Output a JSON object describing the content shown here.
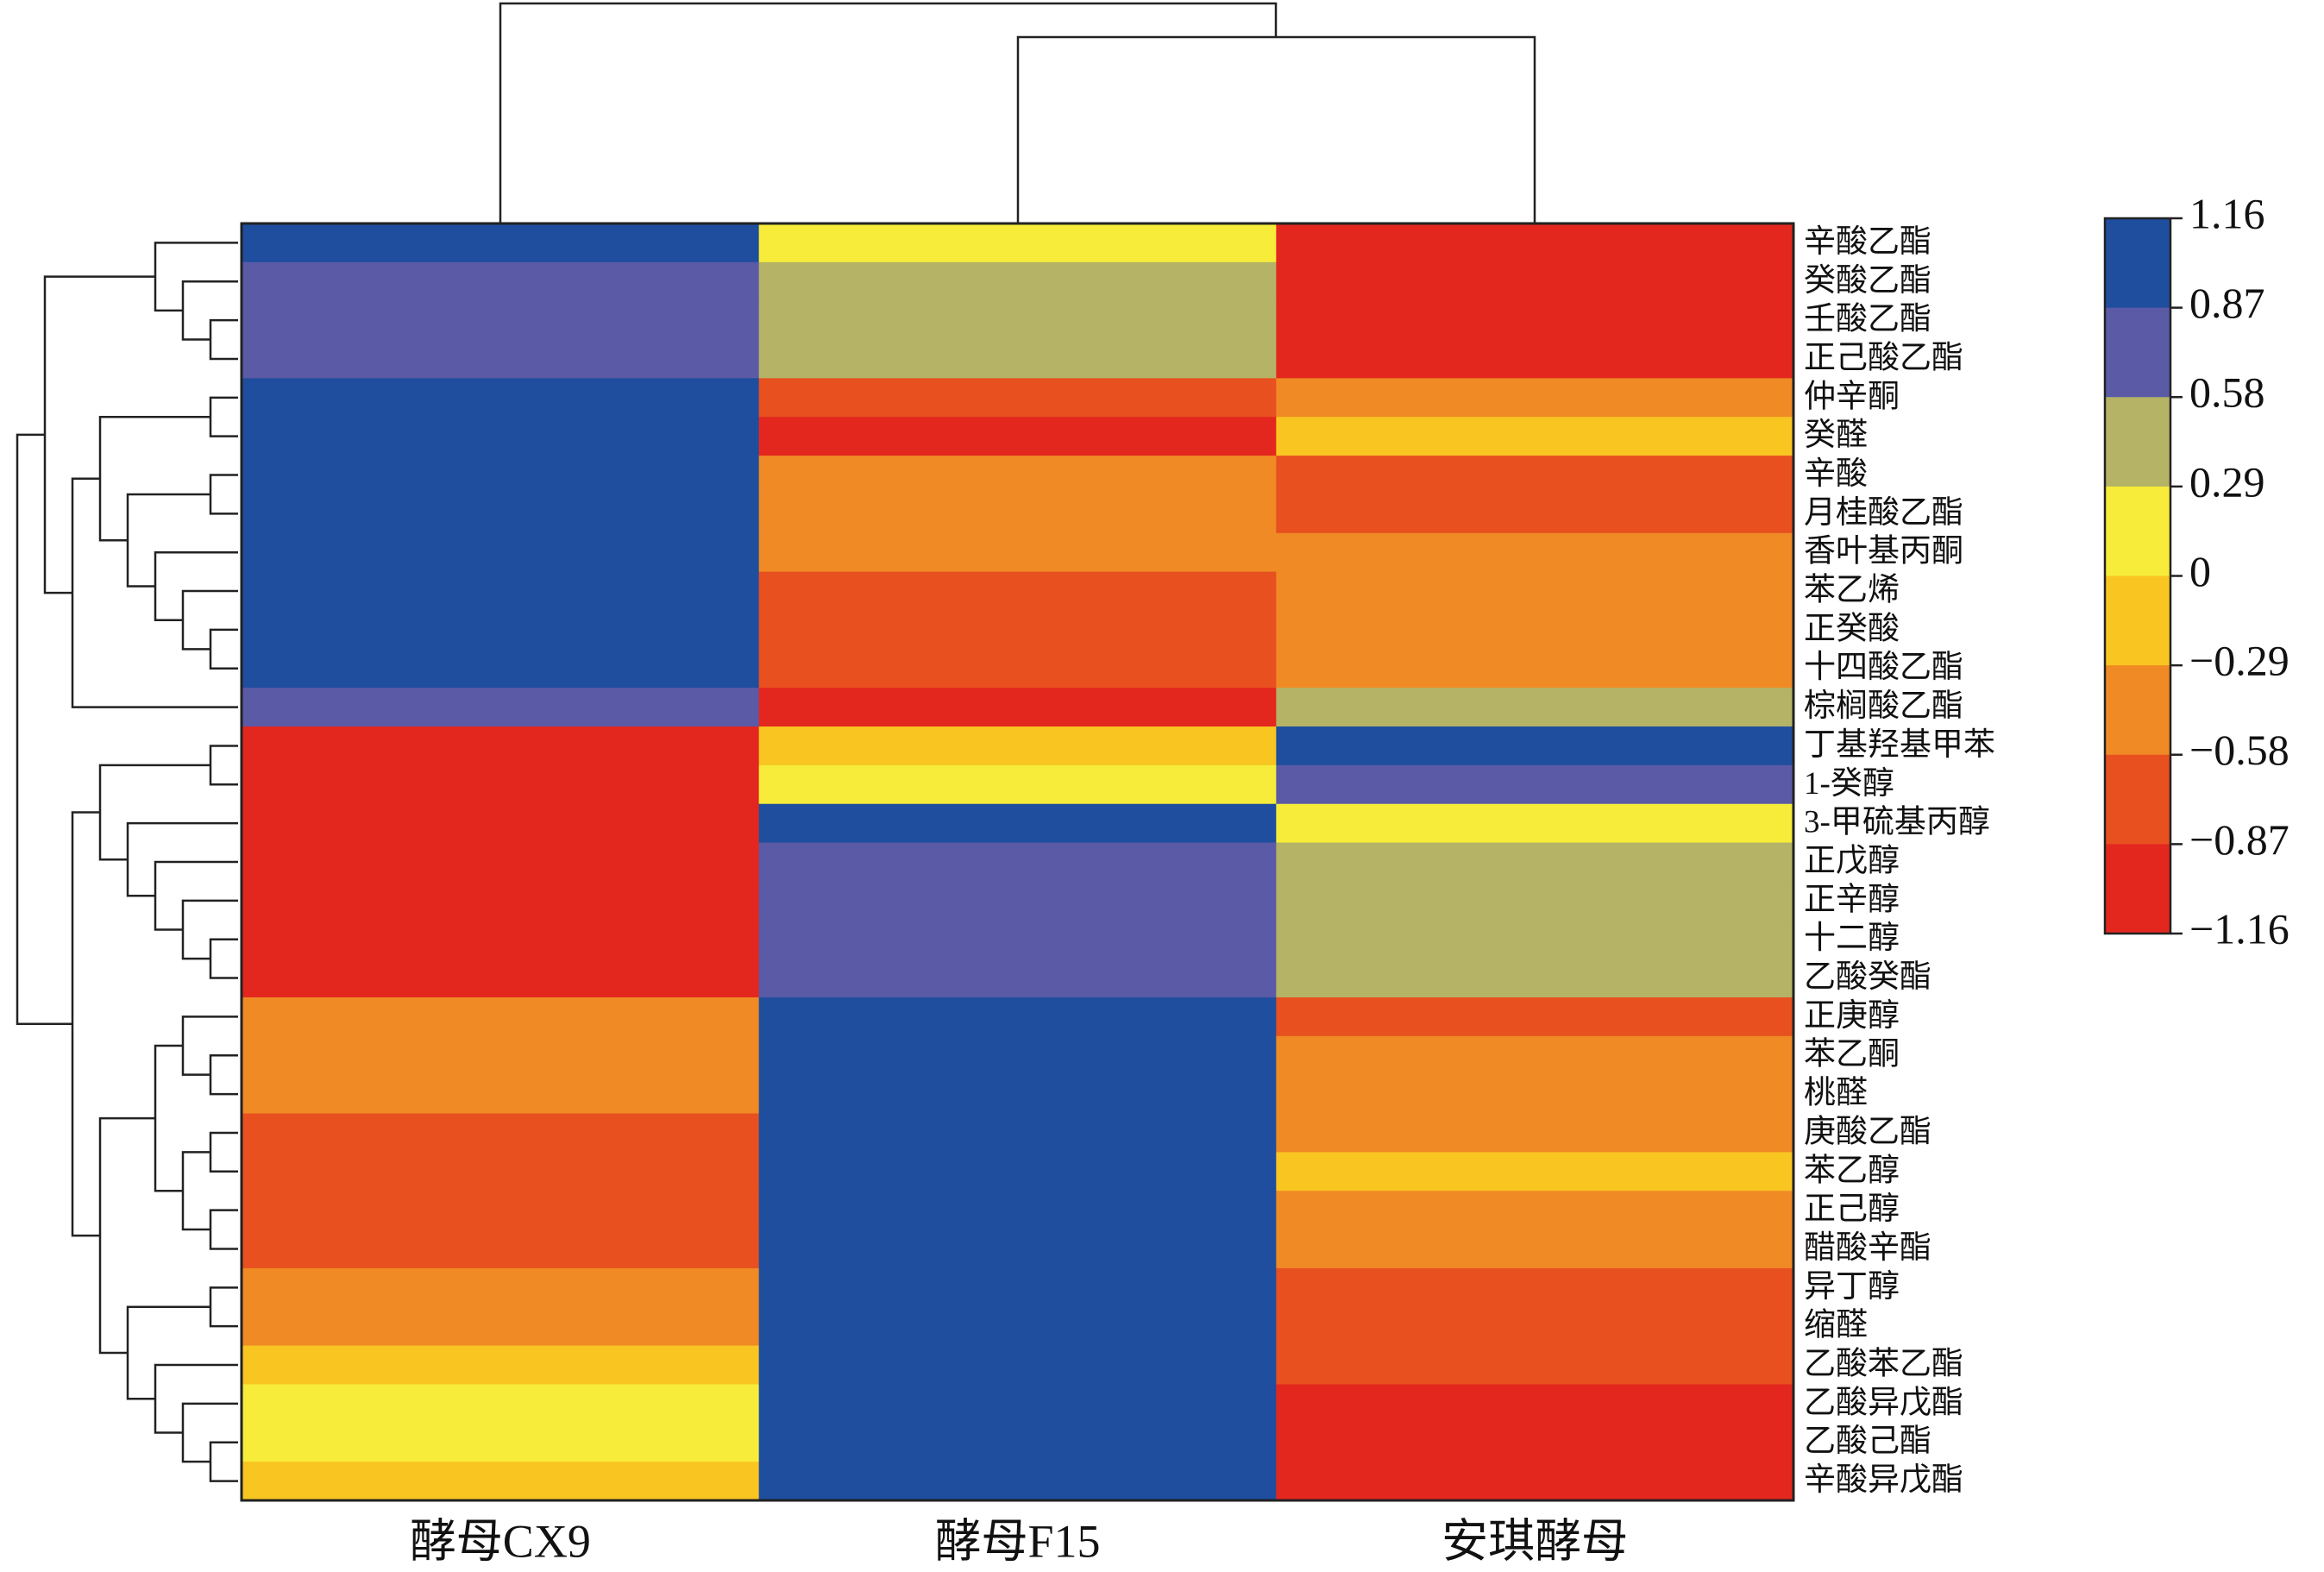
{
  "chart_data": {
    "type": "heatmap",
    "columns": [
      "酵母CX9",
      "酵母F15",
      "安琪酵母"
    ],
    "rows": [
      "辛酸乙酯",
      "癸酸乙酯",
      "壬酸乙酯",
      "正己酸乙酯",
      "仲辛酮",
      "癸醛",
      "辛酸",
      "月桂酸乙酯",
      "香叶基丙酮",
      "苯乙烯",
      "正癸酸",
      "十四酸乙酯",
      "棕榈酸乙酯",
      "丁基羟基甲苯",
      "1-癸醇",
      "3-甲硫基丙醇",
      "正戊醇",
      "正辛醇",
      "十二醇",
      "乙酸癸酯",
      "正庚醇",
      "苯乙酮",
      "桃醛",
      "庚酸乙酯",
      "苯乙醇",
      "正己醇",
      "醋酸辛酯",
      "异丁醇",
      "缩醛",
      "乙酸苯乙酯",
      "乙酸异戊酯",
      "乙酸己酯",
      "辛酸异戊酯"
    ],
    "values": [
      [
        1.0,
        0.1,
        -1.1
      ],
      [
        0.7,
        0.4,
        -1.1
      ],
      [
        0.7,
        0.4,
        -1.1
      ],
      [
        0.7,
        0.4,
        -1.1
      ],
      [
        1.0,
        -0.7,
        -0.45
      ],
      [
        1.0,
        -1.0,
        -0.15
      ],
      [
        1.0,
        -0.45,
        -0.7
      ],
      [
        1.0,
        -0.45,
        -0.7
      ],
      [
        1.0,
        -0.45,
        -0.45
      ],
      [
        1.0,
        -0.7,
        -0.45
      ],
      [
        1.0,
        -0.7,
        -0.45
      ],
      [
        1.0,
        -0.7,
        -0.45
      ],
      [
        0.7,
        -1.0,
        0.4
      ],
      [
        -1.1,
        -0.15,
        1.0
      ],
      [
        -1.1,
        0.1,
        0.7
      ],
      [
        -1.1,
        1.0,
        0.1
      ],
      [
        -1.1,
        0.7,
        0.4
      ],
      [
        -1.1,
        0.7,
        0.4
      ],
      [
        -1.1,
        0.7,
        0.4
      ],
      [
        -1.1,
        0.7,
        0.4
      ],
      [
        -0.45,
        1.0,
        -0.7
      ],
      [
        -0.45,
        1.0,
        -0.45
      ],
      [
        -0.45,
        1.0,
        -0.45
      ],
      [
        -0.7,
        1.0,
        -0.45
      ],
      [
        -0.7,
        1.0,
        -0.15
      ],
      [
        -0.7,
        1.0,
        -0.45
      ],
      [
        -0.7,
        1.0,
        -0.45
      ],
      [
        -0.45,
        1.0,
        -0.7
      ],
      [
        -0.45,
        1.0,
        -0.7
      ],
      [
        -0.15,
        1.0,
        -0.7
      ],
      [
        0.1,
        1.0,
        -1.1
      ],
      [
        0.1,
        1.0,
        -1.1
      ],
      [
        -0.15,
        1.0,
        -1.1
      ]
    ],
    "colorbar": {
      "ticks": [
        1.16,
        0.87,
        0.58,
        0.29,
        0,
        {
          "value": -0.29,
          "label": "−0.29"
        },
        {
          "value": -0.58,
          "label": "−0.58"
        },
        {
          "value": -0.87,
          "label": "−0.87"
        },
        {
          "value": -1.16,
          "label": "−1.16"
        }
      ],
      "colors": [
        "#1f4e9e",
        "#5b5aa6",
        "#b4b366",
        "#f7ec3a",
        "#f9c521",
        "#ef8a24",
        "#e8501f",
        "#e3271f"
      ]
    }
  }
}
